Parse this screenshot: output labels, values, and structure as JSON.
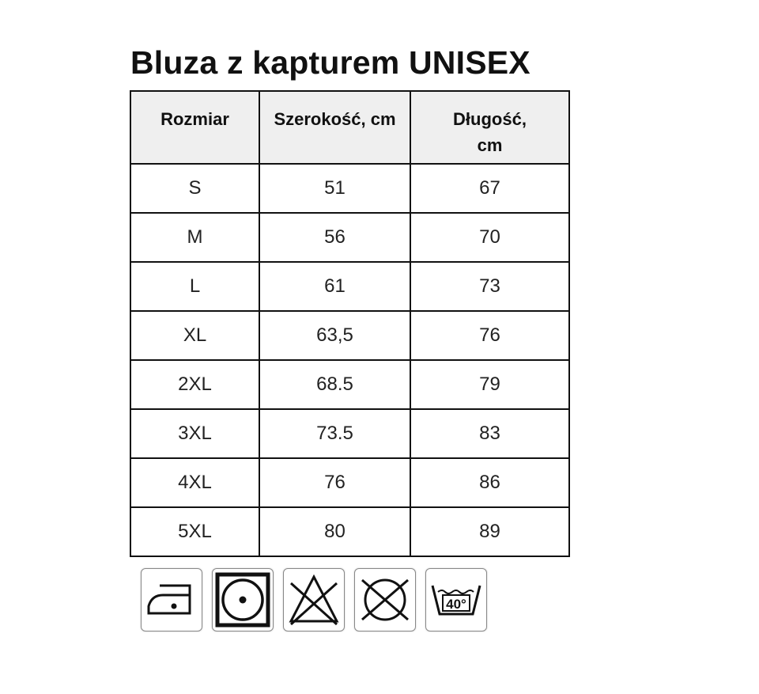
{
  "title": "Bluza z kapturem UNISEX",
  "table": {
    "headers": [
      "Rozmiar",
      "Szerokość, cm",
      "Długość, cm"
    ],
    "rows": [
      [
        "S",
        "51",
        "67"
      ],
      [
        "M",
        "56",
        "70"
      ],
      [
        "L",
        "61",
        "73"
      ],
      [
        "XL",
        "63,5",
        "76"
      ],
      [
        "2XL",
        "68.5",
        "79"
      ],
      [
        "3XL",
        "73.5",
        "83"
      ],
      [
        "4XL",
        "76",
        "86"
      ],
      [
        "5XL",
        "80",
        "89"
      ]
    ]
  },
  "care_icons": [
    "iron-low-heat-icon",
    "tumble-dry-icon",
    "do-not-bleach-icon",
    "do-not-dry-clean-icon",
    "wash-40-icon"
  ],
  "wash_temp": "40°"
}
